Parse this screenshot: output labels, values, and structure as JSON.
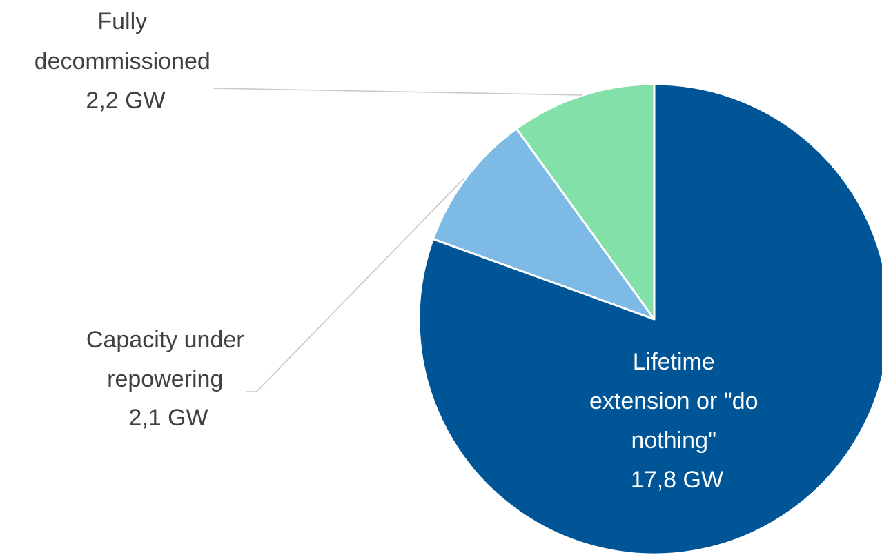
{
  "chart_data": {
    "type": "pie",
    "title": "",
    "unit": "GW",
    "start_angle": "12 o'clock, clockwise",
    "slices": [
      {
        "name": "Lifetime extension or \"do nothing\"",
        "value": 17.8,
        "color": "#005596",
        "label_lines": [
          "Lifetime",
          "extension or \"do",
          "nothing\"",
          "17,8 GW"
        ],
        "label_placement": "inside"
      },
      {
        "name": "Capacity under repowering",
        "value": 2.1,
        "color": "#7dbbe6",
        "label_lines": [
          "Capacity under",
          "repowering",
          "2,1 GW"
        ],
        "label_placement": "outside-left"
      },
      {
        "name": "Fully decommissioned",
        "value": 2.2,
        "color": "#83e0a8",
        "label_lines": [
          "Fully",
          "decommissioned",
          "2,2 GW"
        ],
        "label_placement": "outside-top-left"
      }
    ]
  }
}
